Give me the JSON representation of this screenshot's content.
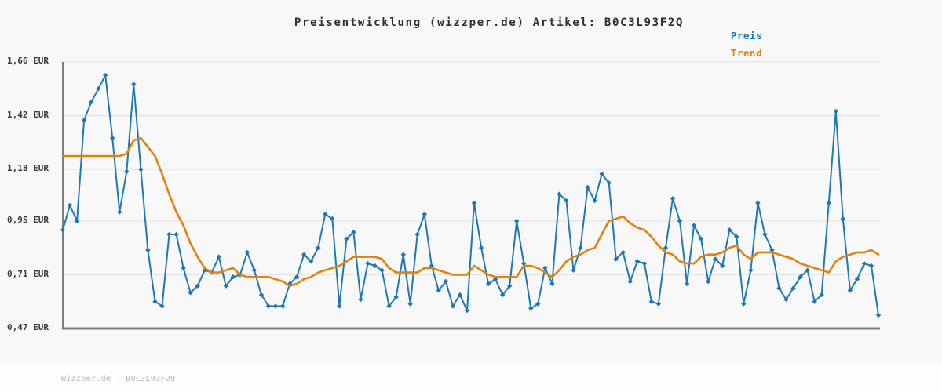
{
  "title": "Preisentwicklung (wizzper.de) Artikel: B0C3L93F2Q",
  "legend": {
    "preis_label": "Preis",
    "trend_label": "Trend"
  },
  "watermark": "Wizzper.de - B0C3L93F2Q",
  "colors": {
    "preis": "#1f77b4",
    "trend": "#e0820d",
    "grid": "#e4e4e4",
    "axis": "#7b7b7b",
    "background": "#f8f8f8",
    "label": "#3a3a3a",
    "watermark": "#b9b9b9"
  },
  "y_axis": {
    "unit": "EUR",
    "min": 0.47,
    "max": 1.66,
    "tick_values": [
      1.66,
      1.42,
      1.18,
      0.95,
      0.71,
      0.47
    ],
    "tick_labels": [
      "1,66 EUR",
      "1,42 EUR",
      "1,18 EUR",
      "0,95 EUR",
      "0,71 EUR",
      "0,47 EUR"
    ]
  },
  "chart_data": {
    "type": "line",
    "title": "Preisentwicklung (wizzper.de) Artikel: B0C3L93F2Q",
    "xlabel": "",
    "ylabel": "EUR",
    "ylim": [
      0.47,
      1.66
    ],
    "grid": "horizontal",
    "legend_position": "top-right",
    "series": [
      {
        "name": "Preis",
        "color": "#1f77b4",
        "marker": "diamond",
        "line_width": 2,
        "values": [
          0.91,
          1.02,
          0.95,
          1.4,
          1.48,
          1.54,
          1.6,
          1.32,
          0.99,
          1.17,
          1.56,
          1.18,
          0.82,
          0.59,
          0.57,
          0.89,
          0.89,
          0.74,
          0.63,
          0.66,
          0.73,
          0.72,
          0.79,
          0.66,
          0.7,
          0.71,
          0.81,
          0.73,
          0.62,
          0.57,
          0.57,
          0.57,
          0.67,
          0.7,
          0.8,
          0.77,
          0.83,
          0.98,
          0.96,
          0.57,
          0.87,
          0.9,
          0.6,
          0.76,
          0.75,
          0.73,
          0.57,
          0.61,
          0.8,
          0.58,
          0.89,
          0.98,
          0.75,
          0.64,
          0.68,
          0.57,
          0.62,
          0.55,
          1.03,
          0.83,
          0.67,
          0.69,
          0.62,
          0.66,
          0.95,
          0.76,
          0.56,
          0.58,
          0.74,
          0.67,
          1.07,
          1.04,
          0.73,
          0.83,
          1.1,
          1.04,
          1.16,
          1.12,
          0.78,
          0.81,
          0.68,
          0.77,
          0.76,
          0.59,
          0.58,
          0.83,
          1.05,
          0.95,
          0.67,
          0.93,
          0.87,
          0.68,
          0.78,
          0.75,
          0.91,
          0.88,
          0.58,
          0.73,
          1.03,
          0.89,
          0.82,
          0.65,
          0.6,
          0.65,
          0.7,
          0.73,
          0.59,
          0.62,
          1.03,
          1.44,
          0.96,
          0.64,
          0.69,
          0.76,
          0.75,
          0.53
        ]
      },
      {
        "name": "Trend",
        "color": "#e0820d",
        "marker": "none",
        "line_width": 2.6,
        "values": [
          1.24,
          1.24,
          1.24,
          1.24,
          1.24,
          1.24,
          1.24,
          1.24,
          1.24,
          1.25,
          1.31,
          1.32,
          1.28,
          1.24,
          1.16,
          1.07,
          0.99,
          0.93,
          0.85,
          0.79,
          0.74,
          0.72,
          0.72,
          0.73,
          0.74,
          0.71,
          0.7,
          0.7,
          0.7,
          0.7,
          0.69,
          0.68,
          0.66,
          0.67,
          0.69,
          0.7,
          0.72,
          0.73,
          0.74,
          0.75,
          0.77,
          0.79,
          0.79,
          0.79,
          0.79,
          0.78,
          0.74,
          0.72,
          0.72,
          0.72,
          0.72,
          0.74,
          0.74,
          0.73,
          0.72,
          0.71,
          0.71,
          0.71,
          0.75,
          0.73,
          0.71,
          0.7,
          0.7,
          0.7,
          0.7,
          0.75,
          0.75,
          0.74,
          0.72,
          0.7,
          0.73,
          0.77,
          0.79,
          0.8,
          0.82,
          0.83,
          0.89,
          0.95,
          0.96,
          0.97,
          0.94,
          0.92,
          0.91,
          0.88,
          0.84,
          0.81,
          0.8,
          0.77,
          0.76,
          0.76,
          0.79,
          0.8,
          0.8,
          0.81,
          0.83,
          0.84,
          0.8,
          0.78,
          0.81,
          0.81,
          0.81,
          0.8,
          0.79,
          0.78,
          0.76,
          0.75,
          0.74,
          0.73,
          0.72,
          0.77,
          0.79,
          0.8,
          0.81,
          0.81,
          0.82,
          0.8
        ]
      }
    ]
  }
}
